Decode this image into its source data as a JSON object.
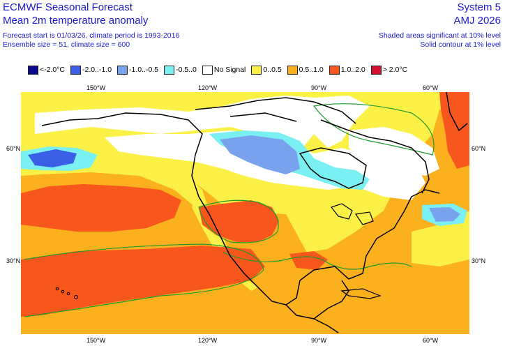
{
  "header": {
    "title": "ECMWF Seasonal Forecast",
    "subtitle": "Mean 2m temperature anomaly",
    "forecast_start": "Forecast start is 01/03/26, climate period is 1993-2016",
    "ensemble": "Ensemble size = 51, climate size = 600",
    "system": "System 5",
    "season": "AMJ 2026",
    "significance_shaded": "Shaded areas significant at 10% level",
    "significance_contour": "Solid contour at 1% level"
  },
  "legend": [
    {
      "label": "<-2.0°C",
      "color": "#0a0a8c"
    },
    {
      "label": "-2.0..-1.0",
      "color": "#3a5fe6"
    },
    {
      "label": "-1.0..-0.5",
      "color": "#79a2ee"
    },
    {
      "label": "-0.5..0",
      "color": "#7af0f2"
    },
    {
      "label": "No Signal",
      "color": "#ffffff"
    },
    {
      "label": "0..0.5",
      "color": "#fbf045"
    },
    {
      "label": "0.5..1.0",
      "color": "#fbb01e"
    },
    {
      "label": "1.0..2.0",
      "color": "#f7561c"
    },
    {
      "label": "> 2.0°C",
      "color": "#d01430"
    }
  ],
  "axes": {
    "lon_ticks": [
      "150°W",
      "120°W",
      "90°W",
      "60°W"
    ],
    "lat_ticks": [
      "60°N",
      "30°N"
    ]
  },
  "map_colors": {
    "weak_warm": "#fbf045",
    "warm": "#fbb01e",
    "strong_warm": "#f7561c",
    "no_signal": "#ffffff",
    "weak_cold": "#7af0f2",
    "cold": "#79a2ee",
    "strong_cold": "#3a5fe6",
    "sig_contour": "#1f9a2e",
    "coast": "#000000"
  }
}
